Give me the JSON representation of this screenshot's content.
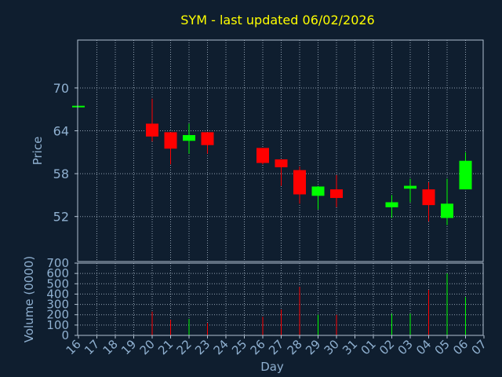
{
  "chart_data": {
    "type": "candlestick",
    "title": "SYM - last updated 06/02/2026",
    "xlabel": "Day",
    "price_panel": {
      "ylabel": "Price",
      "yticks": [
        52,
        58,
        64,
        70
      ],
      "ylim": [
        45.7,
        76.7
      ]
    },
    "volume_panel": {
      "ylabel": "Volume (0000)",
      "yticks": [
        0,
        100,
        200,
        300,
        400,
        500,
        600,
        700
      ],
      "ylim": [
        0,
        700
      ]
    },
    "x_ticks": [
      "16",
      "17",
      "18",
      "19",
      "20",
      "21",
      "22",
      "23",
      "24",
      "25",
      "26",
      "27",
      "28",
      "29",
      "30",
      "31",
      "01",
      "02",
      "03",
      "04",
      "05",
      "06",
      "07"
    ],
    "colors": {
      "background": "#0f1e2f",
      "text": "#8fb0d0",
      "title": "#ffff00",
      "up": "#00ff00",
      "down": "#ff0000",
      "grid": "#b0c0d0"
    },
    "candles": [
      {
        "day": "16",
        "open": 67.5,
        "high": 67.5,
        "low": 67.5,
        "close": 67.5,
        "volume": 0
      },
      {
        "day": "20",
        "open": 65.0,
        "high": 68.5,
        "low": 62.5,
        "close": 63.2,
        "volume": 230
      },
      {
        "day": "21",
        "open": 63.8,
        "high": 63.8,
        "low": 59.3,
        "close": 61.5,
        "volume": 150
      },
      {
        "day": "22",
        "open": 62.6,
        "high": 65.0,
        "low": 60.8,
        "close": 63.4,
        "volume": 160
      },
      {
        "day": "23",
        "open": 63.8,
        "high": 63.8,
        "low": 60.8,
        "close": 62.0,
        "volume": 120
      },
      {
        "day": "26",
        "open": 61.6,
        "high": 61.6,
        "low": 59.3,
        "close": 59.5,
        "volume": 180
      },
      {
        "day": "27",
        "open": 60.0,
        "high": 60.0,
        "low": 56.3,
        "close": 58.9,
        "volume": 250
      },
      {
        "day": "28",
        "open": 58.5,
        "high": 59.0,
        "low": 53.8,
        "close": 55.1,
        "volume": 470
      },
      {
        "day": "29",
        "open": 54.9,
        "high": 56.3,
        "low": 53.0,
        "close": 56.2,
        "volume": 200
      },
      {
        "day": "30",
        "open": 55.8,
        "high": 57.8,
        "low": 53.3,
        "close": 54.6,
        "volume": 200
      },
      {
        "day": "02",
        "open": 53.3,
        "high": 55.0,
        "low": 51.8,
        "close": 54.0,
        "volume": 210
      },
      {
        "day": "03",
        "open": 55.9,
        "high": 57.3,
        "low": 54.0,
        "close": 56.3,
        "volume": 210
      },
      {
        "day": "04",
        "open": 55.8,
        "high": 56.8,
        "low": 51.3,
        "close": 53.6,
        "volume": 440
      },
      {
        "day": "05",
        "open": 51.8,
        "high": 57.3,
        "low": 50.8,
        "close": 53.8,
        "volume": 600
      },
      {
        "day": "06",
        "open": 55.8,
        "high": 61.0,
        "low": 55.8,
        "close": 59.8,
        "volume": 370
      }
    ]
  }
}
